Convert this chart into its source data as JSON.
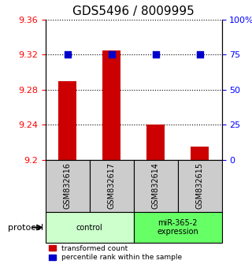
{
  "title": "GDS5496 / 8009995",
  "samples": [
    "GSM832616",
    "GSM832617",
    "GSM832614",
    "GSM832615"
  ],
  "red_values": [
    9.29,
    9.325,
    9.24,
    9.215
  ],
  "blue_values": [
    75,
    75,
    75,
    75
  ],
  "ylim_left": [
    9.2,
    9.36
  ],
  "ylim_right": [
    0,
    100
  ],
  "yticks_left": [
    9.2,
    9.24,
    9.28,
    9.32,
    9.36
  ],
  "yticks_right": [
    0,
    25,
    50,
    75,
    100
  ],
  "ytick_labels_left": [
    "9.2",
    "9.24",
    "9.28",
    "9.32",
    "9.36"
  ],
  "ytick_labels_right": [
    "0",
    "25",
    "50",
    "75",
    "100%"
  ],
  "groups": [
    {
      "label": "control",
      "samples": [
        0,
        1
      ],
      "color": "#ccffcc"
    },
    {
      "label": "miR-365-2\nexpression",
      "samples": [
        2,
        3
      ],
      "color": "#66ff66"
    }
  ],
  "bar_color": "#cc0000",
  "dot_color": "#0000cc",
  "bar_width": 0.4,
  "dot_size": 40,
  "grid_color": "#000000",
  "sample_bg_color": "#cccccc",
  "protocol_label": "protocol",
  "legend_red_label": "transformed count",
  "legend_blue_label": "percentile rank within the sample",
  "title_fontsize": 11,
  "axis_fontsize": 8,
  "tick_fontsize": 8
}
